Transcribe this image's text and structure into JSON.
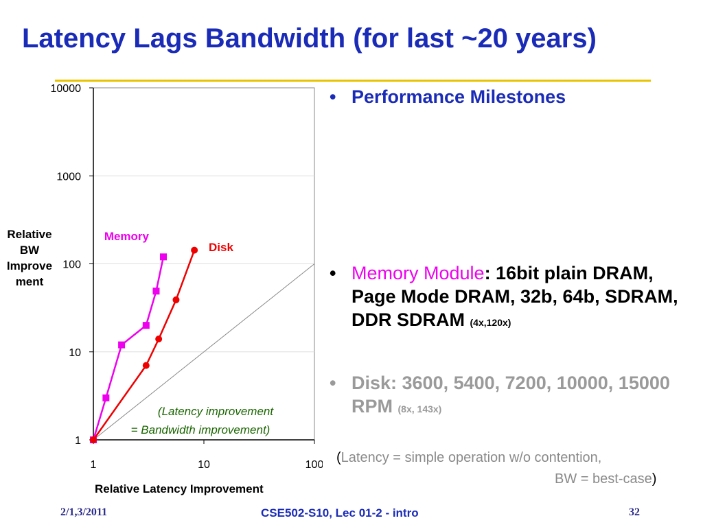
{
  "slide": {
    "title": "Latency Lags Bandwidth (for last ~20 years)",
    "bullets": {
      "milestones": "Performance Milestones",
      "memory_label": "Memory Module",
      "memory_text": ": 16bit plain DRAM, Page Mode DRAM, 32b, 64b, SDRAM,",
      "memory_text2": "DDR SDRAM",
      "memory_note": "(4x,120x)",
      "disk_text": "Disk: 3600, 5400, 7200, 10000, 15000 RPM",
      "disk_note": "(8x, 143x)"
    },
    "note": {
      "open": "(",
      "line1": "Latency = simple operation w/o contention,",
      "line2": "BW = best-case",
      "close": ")"
    },
    "footer": {
      "date": "2/1,3/2011",
      "course": "CSE502-S10, Lec 01-2 - intro",
      "page": "32"
    },
    "colors": {
      "title": "#1a2bb8",
      "rule": "#e8c400",
      "memory": "#ee00ee",
      "disk": "#ee0000",
      "reference": "#888888"
    }
  },
  "chart_data": {
    "type": "line",
    "xscale": "log",
    "yscale": "log",
    "xlim": [
      1,
      100
    ],
    "ylim": [
      1,
      10000
    ],
    "xticks": [
      "1",
      "10",
      "100"
    ],
    "yticks": [
      "1",
      "10",
      "100",
      "1000",
      "10000"
    ],
    "xlabel": "Relative Latency Improvement",
    "ylabel": "Relative BW Improvement",
    "ylabel_lines": [
      "Relative",
      "BW",
      "Improve",
      "ment"
    ],
    "series": [
      {
        "name": "Memory",
        "marker": "square",
        "color": "#ee00ee",
        "points": [
          [
            1,
            1
          ],
          [
            1.3,
            3
          ],
          [
            1.8,
            12
          ],
          [
            3,
            20
          ],
          [
            3.7,
            49
          ],
          [
            4.3,
            120
          ]
        ]
      },
      {
        "name": "Disk",
        "marker": "circle",
        "color": "#ee0000",
        "points": [
          [
            1,
            1
          ],
          [
            3,
            7
          ],
          [
            3.9,
            14
          ],
          [
            5.6,
            39
          ],
          [
            8.2,
            143
          ]
        ]
      }
    ],
    "reference_line": {
      "points": [
        [
          1,
          1
        ],
        [
          100,
          100
        ]
      ],
      "label_line1": "(Latency improvement",
      "label_line2": "= Bandwidth improvement)"
    }
  }
}
